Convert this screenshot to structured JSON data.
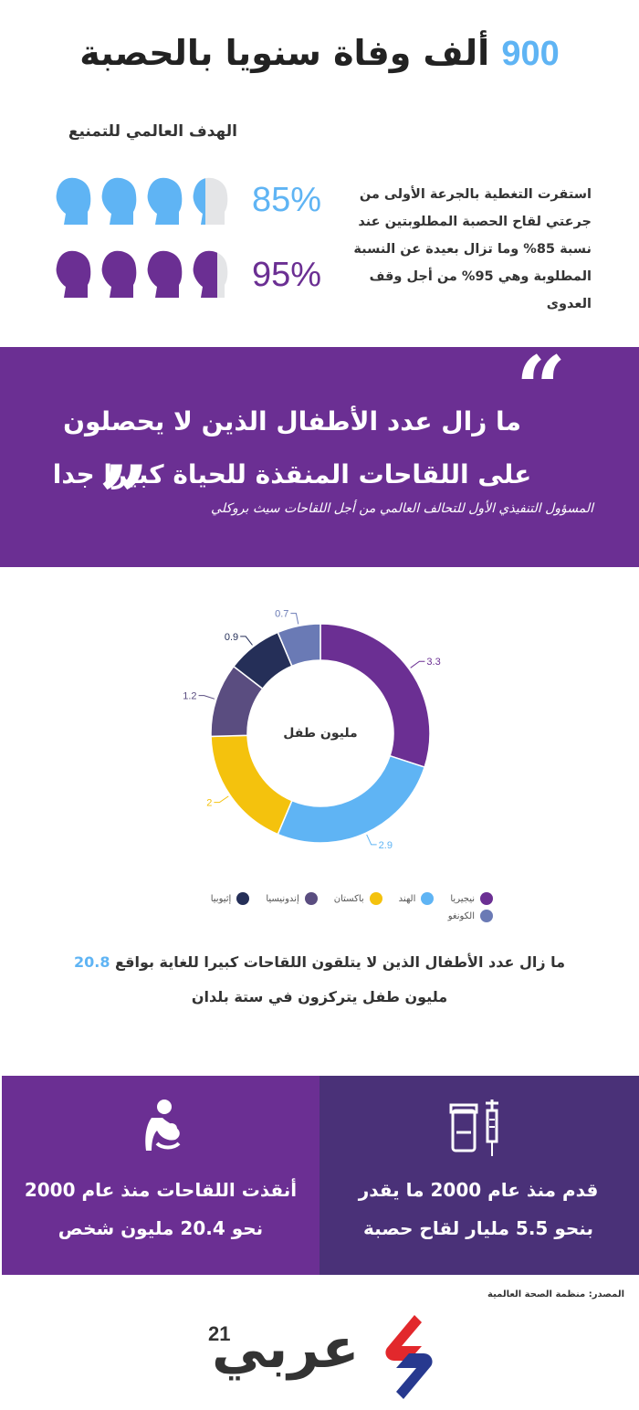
{
  "header": {
    "title_number": "900",
    "title_text": "ألف وفاة سنويا بالحصبة"
  },
  "coverage": {
    "goal_heading": "الهدف العالمي للتمنيع",
    "current_pct_label": "85%",
    "target_pct_label": "95%",
    "current_pct": 85,
    "target_pct": 95,
    "current_color": "#5fb4f4",
    "target_color": "#6b2f93",
    "description": "استقرت التغطية بالجرعة الأولى من جرعتي لقاح الحصبة المطلوبتين عند نسبة 85% وما تزال بعيدة عن النسبة المطلوبة وهي 95% من أجل وقف العدوى",
    "icon_name": "child-head-icon"
  },
  "quote": {
    "text": "ما زال عدد الأطفال الذين لا يحصلون على اللقاحات المنقذة للحياة كبيرا جدا",
    "attribution": "المسؤول التنفيذي الأول للتحالف العالمي من أجل اللقاحات سيث بروكلي",
    "background": "#6b2f93"
  },
  "chart_data": {
    "type": "pie",
    "donut": true,
    "center_label": "مليون طفل",
    "categories": [
      "نيجيريا",
      "الهند",
      "باكستان",
      "إندونيسيا",
      "إثيوبيا",
      "الكونغو"
    ],
    "values": [
      3.3,
      2.9,
      2,
      1.2,
      0.9,
      0.7
    ],
    "colors": [
      "#6b2f93",
      "#5fb4f4",
      "#f4c20d",
      "#5a4d80",
      "#252f58",
      "#6a7ab5"
    ],
    "legend_position": "bottom"
  },
  "summary": {
    "text_before": "ما زال عدد الأطفال الذين لا يتلقون اللقاحات كبيرا للغاية بواقع",
    "highlight": "20.8",
    "text_after": "مليون طفل يتركزون في ستة بلدان"
  },
  "blocks": {
    "left_text": "أنقذت اللقاحات منذ عام 2000 نحو 20.4 مليون شخص",
    "left_icon": "mother-child-icon",
    "right_text": "قدم منذ عام 2000 ما يقدر بنحو 5.5 مليار لقاح حصبة",
    "right_icon": "vaccine-vial-syringe-icon"
  },
  "footer": {
    "source": "المصدر: منظمة الصحة العالمية",
    "logo_text": "عربي",
    "logo_number": "21"
  }
}
